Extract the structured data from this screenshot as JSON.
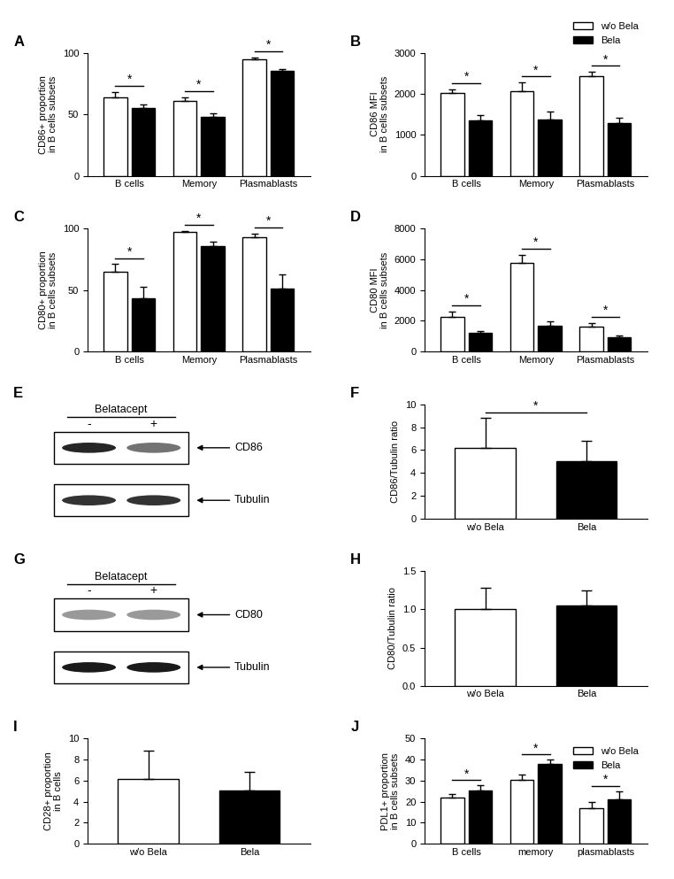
{
  "chart_data": [
    {
      "type": "bar",
      "panel_label": "A",
      "categories": [
        "B cells",
        "Memory",
        "Plasmablasts"
      ],
      "series": [
        {
          "name": "w/o Bela",
          "color": "#ffffff",
          "values": [
            64,
            61,
            95
          ],
          "errors": [
            4,
            3,
            1
          ]
        },
        {
          "name": "Bela",
          "color": "#000000",
          "values": [
            55,
            48,
            85
          ],
          "errors": [
            3,
            3,
            1.5
          ]
        }
      ],
      "y_label": "CD86+ proportion\nin B cells subsets",
      "ylim": [
        0,
        100
      ],
      "yticks": [
        0,
        50,
        100
      ],
      "annotations": [
        {
          "text": "*",
          "categories": [
            "B cells"
          ]
        },
        {
          "text": "*",
          "categories": [
            "Memory"
          ]
        },
        {
          "text": "*",
          "categories": [
            "Plasmablasts"
          ]
        }
      ]
    },
    {
      "type": "bar",
      "panel_label": "B",
      "categories": [
        "B cells",
        "Memory",
        "Plasmablasts"
      ],
      "series": [
        {
          "name": "w/o Bela",
          "color": "#ffffff",
          "values": [
            2020,
            2070,
            2430
          ],
          "errors": [
            90,
            200,
            100
          ]
        },
        {
          "name": "Bela",
          "color": "#000000",
          "values": [
            1350,
            1380,
            1290
          ],
          "errors": [
            120,
            180,
            130
          ]
        }
      ],
      "y_label": "CD86 MFI\nin B cells subsets",
      "ylim": [
        0,
        3000
      ],
      "yticks": [
        0,
        1000,
        2000,
        3000
      ],
      "legend": "upper right",
      "annotations": [
        {
          "text": "*",
          "categories": [
            "B cells"
          ]
        },
        {
          "text": "*",
          "categories": [
            "Memory"
          ]
        },
        {
          "text": "*",
          "categories": [
            "Plasmablasts"
          ]
        }
      ]
    },
    {
      "type": "bar",
      "panel_label": "C",
      "categories": [
        "B cells",
        "Memory",
        "Plasmablasts"
      ],
      "series": [
        {
          "name": "w/o Bela",
          "color": "#ffffff",
          "values": [
            65,
            97,
            93
          ],
          "errors": [
            6,
            1,
            3
          ]
        },
        {
          "name": "Bela",
          "color": "#000000",
          "values": [
            43,
            86,
            51
          ],
          "errors": [
            10,
            3,
            12
          ]
        }
      ],
      "y_label": "CD80+ proportion\nin B cells subsets",
      "ylim": [
        0,
        100
      ],
      "yticks": [
        0,
        50,
        100
      ],
      "annotations": [
        {
          "text": "*",
          "categories": [
            "B cells"
          ]
        },
        {
          "text": "*",
          "categories": [
            "Memory"
          ]
        },
        {
          "text": "*",
          "categories": [
            "Plasmablasts"
          ]
        }
      ]
    },
    {
      "type": "bar",
      "panel_label": "D",
      "categories": [
        "B cells",
        "Memory",
        "Plasmablasts"
      ],
      "series": [
        {
          "name": "w/o Bela",
          "color": "#ffffff",
          "values": [
            2250,
            5750,
            1650
          ],
          "errors": [
            350,
            550,
            200
          ]
        },
        {
          "name": "Bela",
          "color": "#000000",
          "values": [
            1200,
            1700,
            950
          ],
          "errors": [
            150,
            250,
            100
          ]
        }
      ],
      "y_label": "CD80 MFI\nin B cells subsets",
      "ylim": [
        0,
        8000
      ],
      "yticks": [
        0,
        2000,
        4000,
        6000,
        8000
      ],
      "annotations": [
        {
          "text": "*",
          "categories": [
            "B cells"
          ]
        },
        {
          "text": "*",
          "categories": [
            "Memory"
          ]
        },
        {
          "text": "*",
          "categories": [
            "Plasmablasts"
          ]
        }
      ]
    },
    {
      "type": "bar",
      "panel_label": "F",
      "categories": [
        "w/o Bela",
        "Bela"
      ],
      "values": [
        6.15,
        5.05
      ],
      "errors": [
        2.65,
        1.75
      ],
      "colors": [
        "#ffffff",
        "#000000"
      ],
      "y_label": "CD86/Tubulin ratio",
      "ylim": [
        0,
        10
      ],
      "yticks": [
        0,
        2,
        4,
        6,
        8,
        10
      ],
      "annotations": [
        {
          "text": "*",
          "categories": [
            "w/o Bela",
            "Bela"
          ]
        }
      ]
    },
    {
      "type": "bar",
      "panel_label": "H",
      "categories": [
        "w/o Bela",
        "Bela"
      ],
      "values": [
        1.0,
        1.05
      ],
      "errors": [
        0.28,
        0.2
      ],
      "colors": [
        "#ffffff",
        "#000000"
      ],
      "y_label": "CD80/Tubulin ratio",
      "ylim": [
        0,
        1.5
      ],
      "yticks": [
        {
          "value": 0,
          "label": "0.0"
        },
        0.5,
        {
          "value": 1,
          "label": "1.0"
        },
        1.5
      ]
    },
    {
      "type": "bar",
      "panel_label": "I",
      "categories": [
        "w/o Bela",
        "Bela"
      ],
      "values": [
        6.15,
        5.05
      ],
      "errors": [
        2.65,
        1.75
      ],
      "colors": [
        "#ffffff",
        "#000000"
      ],
      "y_label": "CD28+ proportion\nin B cells",
      "ylim": [
        0,
        10
      ],
      "yticks": [
        0,
        2,
        4,
        6,
        8,
        10
      ]
    },
    {
      "type": "bar",
      "panel_label": "J",
      "categories": [
        "B cells",
        "memory",
        "plasmablasts"
      ],
      "series": [
        {
          "name": "w/o Bela",
          "color": "#ffffff",
          "values": [
            22,
            30.5,
            17
          ],
          "errors": [
            1.5,
            2.5,
            3
          ]
        },
        {
          "name": "Bela",
          "color": "#000000",
          "values": [
            25.5,
            38,
            21
          ],
          "errors": [
            2.2,
            1.8,
            4
          ]
        }
      ],
      "y_label": "PDL1+ proportion\nin B cells subsets",
      "ylim": [
        0,
        50
      ],
      "yticks": [
        0,
        10,
        20,
        30,
        40,
        50
      ],
      "legend": "upper right",
      "annotations": [
        {
          "text": "*",
          "categories": [
            "B cells"
          ]
        },
        {
          "text": "*",
          "categories": [
            "memory"
          ]
        },
        {
          "text": "*",
          "categories": [
            "plasmablasts"
          ]
        }
      ]
    }
  ],
  "blots": [
    {
      "panel_label": "E",
      "header": "Belatacept",
      "lanes": [
        "-",
        "+"
      ],
      "bands": [
        "CD86",
        "Tubulin"
      ]
    },
    {
      "panel_label": "G",
      "header": "Belatacept",
      "lanes": [
        "-",
        "+"
      ],
      "bands": [
        "CD80",
        "Tubulin"
      ]
    }
  ]
}
